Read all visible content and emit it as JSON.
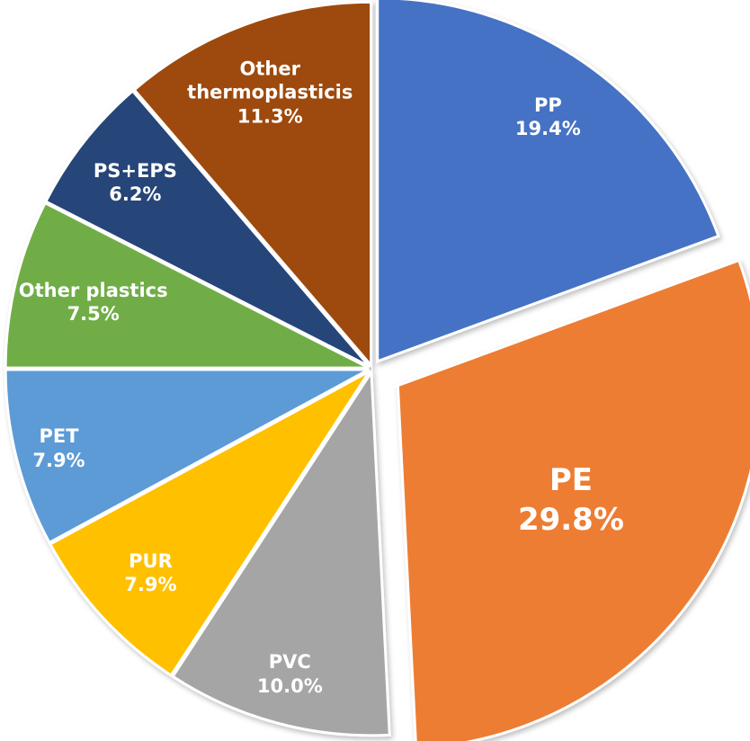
{
  "chart_data": {
    "type": "pie",
    "categories": [
      "PP",
      "PE",
      "PVC",
      "PUR",
      "PET",
      "Other plastics",
      "PS+EPS",
      "Other thermoplasticis"
    ],
    "values": [
      19.4,
      29.8,
      10.0,
      7.9,
      7.9,
      7.5,
      6.2,
      11.3
    ],
    "value_labels": [
      "19.4%",
      "29.8%",
      "10.0%",
      "7.9%",
      "7.9%",
      "7.5%",
      "6.2%",
      "11.3%"
    ],
    "colors": [
      "#4472c4",
      "#ed7d31",
      "#a5a5a5",
      "#ffc000",
      "#5b9bd5",
      "#70ad47",
      "#264478",
      "#9e480e"
    ]
  }
}
